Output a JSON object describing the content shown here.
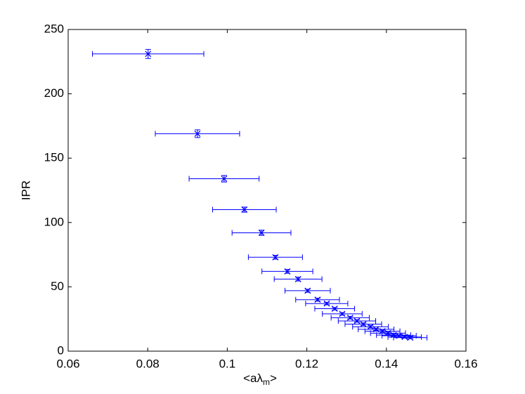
{
  "chart_data": {
    "type": "scatter",
    "xlabel": [
      "<aλ",
      "m",
      ">"
    ],
    "ylabel": "IPR",
    "xlim": [
      0.06,
      0.16
    ],
    "xticks": [
      0.06,
      0.08,
      0.1,
      0.12,
      0.14,
      0.16
    ],
    "ylim": [
      0,
      250
    ],
    "yticks": [
      0,
      50,
      100,
      150,
      200,
      250
    ],
    "grid": false,
    "series": [
      {
        "color": "#0000ff",
        "x": [
          0.0801,
          0.0925,
          0.0992,
          0.1043,
          0.1086,
          0.1121,
          0.1151,
          0.1178,
          0.1202,
          0.1227,
          0.125,
          0.127,
          0.1289,
          0.1309,
          0.1326,
          0.1342,
          0.136,
          0.1374,
          0.139,
          0.1404,
          0.1418,
          0.1432,
          0.1446,
          0.146
        ],
        "values": [
          231,
          169,
          134,
          110,
          92,
          73,
          62,
          56,
          47,
          40,
          37,
          33,
          29,
          26,
          23.5,
          21,
          19,
          17,
          15.5,
          14,
          12.5,
          12,
          11,
          10.5
        ],
        "xerr": [
          0.014,
          0.0106,
          0.0088,
          0.008,
          0.0074,
          0.0068,
          0.0064,
          0.006,
          0.0057,
          0.0055,
          0.0053,
          0.005,
          0.005,
          0.0048,
          0.0047,
          0.0046,
          0.0045,
          0.0045,
          0.0044,
          0.0044,
          0.0043,
          0.0043,
          0.0042,
          0.0042
        ],
        "yerr": [
          3.5,
          3,
          2.5,
          2,
          2,
          1.5,
          1.5,
          1.5,
          1.2,
          1.2,
          1,
          1,
          1,
          1,
          1,
          1,
          1,
          0.8,
          0.8,
          0.8,
          0.8,
          0.8,
          0.8,
          0.8
        ]
      }
    ]
  }
}
